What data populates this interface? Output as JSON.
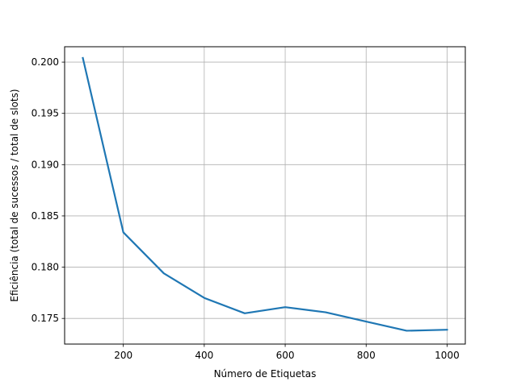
{
  "chart_data": {
    "type": "line",
    "title": "",
    "xlabel": "Número de Etiquetas",
    "ylabel": "Eficiência (total de sucessos / total de slots)",
    "xlim": [
      55,
      1045
    ],
    "ylim": [
      0.1725,
      0.2015
    ],
    "x_ticks": [
      200,
      400,
      600,
      800,
      1000
    ],
    "y_ticks": [
      0.175,
      0.18,
      0.185,
      0.19,
      0.195,
      0.2
    ],
    "grid": true,
    "series": [
      {
        "color": "#1f77b4",
        "x": [
          100,
          200,
          300,
          400,
          500,
          600,
          700,
          800,
          900,
          1000
        ],
        "y": [
          0.2004,
          0.1834,
          0.1794,
          0.177,
          0.1755,
          0.1761,
          0.1756,
          0.1747,
          0.1738,
          0.1739
        ]
      }
    ]
  }
}
